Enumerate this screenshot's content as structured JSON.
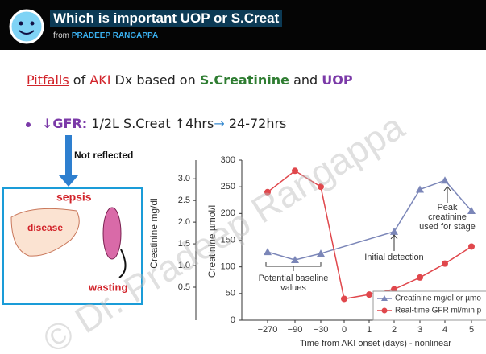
{
  "header": {
    "title": "Which is important UOP or S.Creat",
    "from": "from",
    "author": "PRADEEP RANGAPPA"
  },
  "slide": {
    "heading": [
      "Pitfalls",
      "of",
      "AKI",
      "Dx based on",
      "S.Creatinine",
      "and",
      "UOP"
    ],
    "bullet": [
      "↓GFR:",
      "1/2L S.Creat ↑4hrs",
      "→",
      "24-72hrs"
    ],
    "arrow_label": "Not reflected",
    "diagram": {
      "sepsis": "sepsis",
      "disease": "disease",
      "wasting": "wasting"
    },
    "watermark": "© Dr. Pradeep Rangappa"
  },
  "chart_data": {
    "type": "line",
    "categories": [
      "−270",
      "−90",
      "−30",
      "0",
      "1",
      "2",
      "3",
      "4",
      "5"
    ],
    "x_label": "Time from AKI onset (days) - nonlinear",
    "y_label": "Creatinine µmol/l",
    "y2_label": "Creatinine mg/dl",
    "ylim": [
      0,
      300
    ],
    "yticks": [
      0,
      50,
      100,
      150,
      200,
      250,
      300
    ],
    "y2lim": [
      -0.26,
      3.43
    ],
    "y2ticks": [
      {
        "value": 0.5,
        "label": "0.5"
      },
      {
        "value": 1,
        "label": "1.0"
      },
      {
        "value": 1.5,
        "label": "1.5"
      },
      {
        "value": 2,
        "label": "2.0"
      },
      {
        "value": 2.5,
        "label": "2.5"
      },
      {
        "value": 3,
        "label": "3.0"
      }
    ],
    "series": [
      {
        "name": "Creatinine mg/dl or µmo",
        "color": "#7b86b8",
        "marker": "triangle",
        "x": [
          "−270",
          "−90",
          "−30",
          "2",
          "3",
          "4",
          "5"
        ],
        "values": [
          128,
          113,
          125,
          166,
          245,
          262,
          205
        ]
      },
      {
        "name": "Real-time GFR ml/min p",
        "color": "#e0474c",
        "marker": "circle",
        "x": [
          "−270",
          "−90",
          "−30",
          "0",
          "1",
          "2",
          "3",
          "4",
          "5"
        ],
        "values": [
          240,
          280,
          250,
          40,
          48,
          58,
          80,
          106,
          138
        ]
      }
    ],
    "annotations": {
      "baseline": [
        "Potential baseline",
        "values"
      ],
      "detection": [
        "Initial detection"
      ],
      "peak": [
        "Peak",
        "creatinine",
        "used for stage"
      ]
    }
  }
}
